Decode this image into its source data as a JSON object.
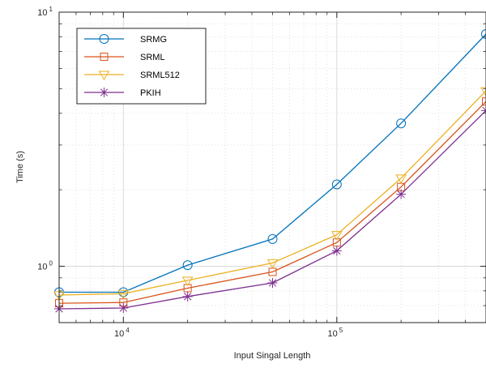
{
  "chart_data": {
    "type": "line",
    "xlabel": "Input Singal Length",
    "ylabel": "Time (s)",
    "xscale": "log",
    "yscale": "log",
    "xlim": [
      5000,
      500000
    ],
    "ylim": [
      0.6,
      10
    ],
    "grid": true,
    "minor_grid": true,
    "legend_position": "top-left",
    "x": [
      5000,
      10000,
      20000,
      50000,
      100000,
      200000,
      500000
    ],
    "x_ticks": [
      {
        "value": 10000,
        "base": "10",
        "exp": "4"
      },
      {
        "value": 100000,
        "base": "10",
        "exp": "5"
      }
    ],
    "y_ticks": [
      {
        "value": 1,
        "base": "10",
        "exp": "0"
      },
      {
        "value": 10,
        "base": "10",
        "exp": "1"
      }
    ],
    "series": [
      {
        "name": "SRMG",
        "color": "#0072BD",
        "marker": "circle",
        "values": [
          0.79,
          0.79,
          1.01,
          1.28,
          2.1,
          3.65,
          8.2
        ]
      },
      {
        "name": "SRML",
        "color": "#D95319",
        "marker": "square",
        "values": [
          0.715,
          0.72,
          0.82,
          0.95,
          1.24,
          2.05,
          4.45
        ]
      },
      {
        "name": "SRML512",
        "color": "#EDB120",
        "marker": "triangle-down",
        "values": [
          0.77,
          0.78,
          0.88,
          1.03,
          1.33,
          2.22,
          4.9
        ]
      },
      {
        "name": "PKIH",
        "color": "#7E2F8E",
        "marker": "asterisk",
        "values": [
          0.68,
          0.685,
          0.76,
          0.86,
          1.15,
          1.92,
          4.1
        ]
      }
    ]
  }
}
